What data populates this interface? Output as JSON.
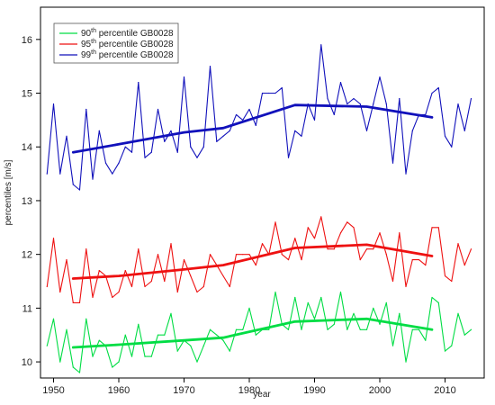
{
  "chart_data": {
    "type": "line",
    "xlabel": "year",
    "ylabel": "percentiles [m/s]",
    "xlim": [
      1948,
      2016
    ],
    "ylim": [
      9.7,
      16.6
    ],
    "xticks": [
      1950,
      1960,
      1970,
      1980,
      1990,
      2000,
      2010
    ],
    "yticks": [
      10,
      11,
      12,
      13,
      14,
      15,
      16
    ],
    "grid": false,
    "legend_position": "top-left",
    "legend": [
      {
        "pre": "90",
        "sup": "th",
        "post": "  percentile GB0028",
        "color": "#00dd44"
      },
      {
        "pre": "95",
        "sup": "th",
        "post": "  percentile GB0028",
        "color": "#ee1111"
      },
      {
        "pre": "99",
        "sup": "th",
        "post": "  percentile GB0028",
        "color": "#1111bb"
      }
    ],
    "x": [
      1949,
      1950,
      1951,
      1952,
      1953,
      1954,
      1955,
      1956,
      1957,
      1958,
      1959,
      1960,
      1961,
      1962,
      1963,
      1964,
      1965,
      1966,
      1967,
      1968,
      1969,
      1970,
      1971,
      1972,
      1973,
      1974,
      1975,
      1976,
      1977,
      1978,
      1979,
      1980,
      1981,
      1982,
      1983,
      1984,
      1985,
      1986,
      1987,
      1988,
      1989,
      1990,
      1991,
      1992,
      1993,
      1994,
      1995,
      1996,
      1997,
      1998,
      1999,
      2000,
      2001,
      2002,
      2003,
      2004,
      2005,
      2006,
      2007,
      2008,
      2009,
      2010,
      2011,
      2012,
      2013,
      2014
    ],
    "series": [
      {
        "color": "#1111bb",
        "values": [
          13.5,
          14.8,
          13.5,
          14.2,
          13.3,
          13.2,
          14.7,
          13.4,
          14.3,
          13.7,
          13.5,
          13.7,
          14.0,
          13.9,
          15.2,
          13.8,
          13.9,
          14.7,
          14.1,
          14.3,
          13.9,
          15.3,
          14.0,
          13.8,
          14.0,
          15.5,
          14.1,
          14.2,
          14.3,
          14.6,
          14.5,
          14.7,
          14.4,
          15.0,
          15.0,
          15.0,
          15.1,
          13.8,
          14.3,
          14.2,
          14.8,
          14.5,
          15.9,
          14.9,
          14.6,
          15.2,
          14.8,
          14.9,
          14.8,
          14.3,
          14.8,
          15.3,
          14.8,
          13.7,
          14.9,
          13.5,
          14.3,
          14.6,
          14.6,
          15.0,
          15.1,
          14.2,
          14.0,
          14.8,
          14.3,
          14.9
        ],
        "trend": {
          "x": [
            1953,
            1960,
            1970,
            1976,
            1987,
            1998,
            2008
          ],
          "y": [
            13.9,
            14.05,
            14.27,
            14.35,
            14.78,
            14.75,
            14.55
          ]
        }
      },
      {
        "color": "#ee1111",
        "values": [
          11.4,
          12.3,
          11.3,
          11.9,
          11.1,
          11.1,
          12.1,
          11.2,
          11.7,
          11.6,
          11.2,
          11.3,
          11.7,
          11.4,
          12.1,
          11.4,
          11.5,
          12.0,
          11.5,
          12.2,
          11.3,
          11.9,
          11.6,
          11.3,
          11.4,
          12.0,
          11.8,
          11.6,
          11.4,
          12.0,
          12.0,
          12.0,
          11.8,
          12.2,
          12.0,
          12.6,
          12.0,
          11.9,
          12.3,
          11.9,
          12.5,
          12.3,
          12.7,
          12.1,
          12.1,
          12.4,
          12.6,
          12.5,
          11.9,
          12.1,
          12.1,
          12.4,
          12.0,
          11.5,
          12.4,
          11.4,
          11.9,
          11.9,
          11.8,
          12.5,
          12.5,
          11.6,
          11.5,
          12.2,
          11.8,
          12.1
        ],
        "trend": {
          "x": [
            1953,
            1960,
            1970,
            1976,
            1987,
            1998,
            2008
          ],
          "y": [
            11.55,
            11.6,
            11.72,
            11.8,
            12.12,
            12.18,
            11.97
          ]
        }
      },
      {
        "color": "#00dd44",
        "values": [
          10.3,
          10.8,
          10.0,
          10.6,
          9.9,
          9.8,
          10.8,
          10.1,
          10.4,
          10.3,
          9.9,
          10.0,
          10.5,
          10.1,
          10.7,
          10.1,
          10.1,
          10.5,
          10.5,
          10.9,
          10.2,
          10.4,
          10.3,
          10.0,
          10.3,
          10.6,
          10.5,
          10.4,
          10.2,
          10.6,
          10.6,
          11.0,
          10.5,
          10.6,
          10.6,
          11.3,
          10.7,
          10.6,
          11.2,
          10.6,
          11.1,
          10.8,
          11.2,
          10.6,
          10.7,
          11.3,
          10.6,
          10.9,
          10.6,
          10.6,
          11.0,
          10.7,
          11.1,
          10.3,
          10.9,
          10.0,
          10.6,
          10.6,
          10.4,
          11.2,
          11.1,
          10.2,
          10.3,
          10.9,
          10.5,
          10.6
        ],
        "trend": {
          "x": [
            1953,
            1960,
            1970,
            1976,
            1987,
            1998,
            2008
          ],
          "y": [
            10.27,
            10.32,
            10.4,
            10.45,
            10.75,
            10.8,
            10.6
          ]
        }
      }
    ]
  }
}
